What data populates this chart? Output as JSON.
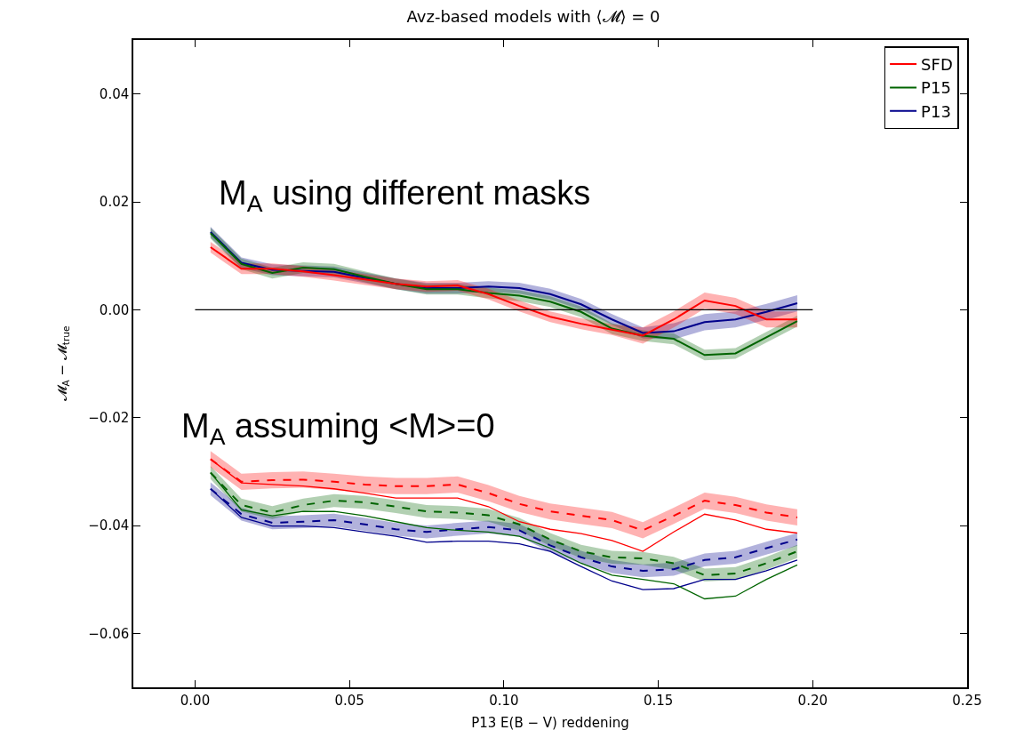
{
  "chart_data": {
    "type": "line",
    "title": "Avz-based models with ⟨𝓜⟩ = 0",
    "xlabel": "P13 E(B − V) reddening",
    "ylabel": "𝓜$_{A}$ − 𝓜$_{true}$",
    "annotations": [
      "M$_{A}$ using different masks",
      "M$_{A}$ assuming <M>=0"
    ],
    "x": [
      0.005,
      0.015,
      0.025,
      0.035,
      0.045,
      0.055,
      0.065,
      0.075,
      0.085,
      0.095,
      0.105,
      0.115,
      0.125,
      0.135,
      0.145,
      0.155,
      0.165,
      0.175,
      0.185,
      0.195
    ],
    "series": [
      {
        "name": "P13",
        "color": "#00008b",
        "values": [
          0.0144,
          0.0087,
          0.0074,
          0.0072,
          0.007,
          0.0059,
          0.0048,
          0.004,
          0.004,
          0.0043,
          0.004,
          0.0029,
          0.001,
          -0.0018,
          -0.0043,
          -0.004,
          -0.0023,
          -0.0018,
          -0.0004,
          0.0012
        ],
        "upper": [
          0.0154,
          0.0097,
          0.0084,
          0.0082,
          0.008,
          0.0069,
          0.0058,
          0.005,
          0.005,
          0.0053,
          0.005,
          0.0039,
          0.002,
          -0.0008,
          -0.0033,
          -0.0025,
          -0.0008,
          -0.0003,
          0.0011,
          0.0027
        ],
        "lower": [
          0.0134,
          0.0077,
          0.0064,
          0.0062,
          0.006,
          0.0049,
          0.0038,
          0.003,
          0.003,
          0.0033,
          0.003,
          0.0019,
          0.0,
          -0.0028,
          -0.0053,
          -0.0055,
          -0.0038,
          -0.0033,
          -0.0019,
          -0.0003
        ]
      },
      {
        "name": "P15",
        "color": "#006400",
        "values": [
          0.0142,
          0.0085,
          0.0068,
          0.0078,
          0.0075,
          0.0061,
          0.0048,
          0.0038,
          0.0038,
          0.0031,
          0.0026,
          0.0015,
          -0.0004,
          -0.0035,
          -0.0048,
          -0.0054,
          -0.0084,
          -0.0081,
          -0.0051,
          -0.0021
        ],
        "upper": [
          0.0152,
          0.0095,
          0.0078,
          0.0088,
          0.0085,
          0.0071,
          0.0058,
          0.0048,
          0.0048,
          0.0041,
          0.0036,
          0.0025,
          0.0006,
          -0.0025,
          -0.0038,
          -0.0044,
          -0.0074,
          -0.0071,
          -0.0041,
          -0.0011
        ],
        "lower": [
          0.0132,
          0.0075,
          0.0058,
          0.0068,
          0.0065,
          0.0051,
          0.0038,
          0.0028,
          0.0028,
          0.0021,
          0.0016,
          0.0005,
          -0.0014,
          -0.0045,
          -0.0058,
          -0.0064,
          -0.0094,
          -0.0091,
          -0.0061,
          -0.0031
        ]
      },
      {
        "name": "SFD",
        "color": "#ff0000",
        "values": [
          0.0116,
          0.0076,
          0.0076,
          0.0071,
          0.0064,
          0.0056,
          0.0048,
          0.0043,
          0.0045,
          0.0029,
          0.0007,
          -0.0013,
          -0.0026,
          -0.0037,
          -0.0048,
          -0.0018,
          0.0017,
          0.0007,
          -0.0018,
          -0.0018
        ],
        "upper": [
          0.0126,
          0.0086,
          0.0086,
          0.0081,
          0.0074,
          0.0066,
          0.0058,
          0.0053,
          0.0055,
          0.0039,
          0.0017,
          -0.0003,
          -0.0016,
          -0.0027,
          -0.0033,
          -0.0003,
          0.0032,
          0.0022,
          -0.0003,
          -0.0003
        ],
        "lower": [
          0.0106,
          0.0066,
          0.0066,
          0.0061,
          0.0054,
          0.0046,
          0.0038,
          0.0033,
          0.0035,
          0.0019,
          -0.0003,
          -0.0023,
          -0.0036,
          -0.0047,
          -0.0063,
          -0.0033,
          0.0002,
          -0.0008,
          -0.0033,
          -0.0033
        ]
      },
      {
        "color": "#00008b",
        "line_style": "dashed",
        "values": [
          -0.0332,
          -0.0379,
          -0.0395,
          -0.0393,
          -0.039,
          -0.0398,
          -0.0407,
          -0.0412,
          -0.0407,
          -0.0403,
          -0.0409,
          -0.0437,
          -0.0459,
          -0.0476,
          -0.0484,
          -0.0481,
          -0.0464,
          -0.0459,
          -0.0442,
          -0.0426
        ],
        "upper": [
          -0.032,
          -0.0367,
          -0.0383,
          -0.0381,
          -0.0378,
          -0.0386,
          -0.0395,
          -0.04,
          -0.0395,
          -0.0391,
          -0.0397,
          -0.0425,
          -0.0447,
          -0.0464,
          -0.0472,
          -0.0469,
          -0.0452,
          -0.0447,
          -0.043,
          -0.0414
        ],
        "lower": [
          -0.0344,
          -0.0391,
          -0.0407,
          -0.0405,
          -0.0402,
          -0.041,
          -0.0419,
          -0.0424,
          -0.0419,
          -0.0415,
          -0.0421,
          -0.0449,
          -0.0471,
          -0.0488,
          -0.0496,
          -0.0493,
          -0.0476,
          -0.0471,
          -0.0454,
          -0.0438
        ]
      },
      {
        "color": "#006400",
        "line_style": "dashed",
        "values": [
          -0.0302,
          -0.0362,
          -0.0376,
          -0.0362,
          -0.0354,
          -0.0357,
          -0.0365,
          -0.0374,
          -0.0376,
          -0.0381,
          -0.0398,
          -0.0426,
          -0.0448,
          -0.0459,
          -0.0461,
          -0.047,
          -0.0492,
          -0.0489,
          -0.047,
          -0.0448
        ],
        "upper": [
          -0.029,
          -0.035,
          -0.0364,
          -0.035,
          -0.0342,
          -0.0345,
          -0.0353,
          -0.0362,
          -0.0364,
          -0.0369,
          -0.0386,
          -0.0414,
          -0.0436,
          -0.0447,
          -0.0449,
          -0.0458,
          -0.048,
          -0.0477,
          -0.0458,
          -0.0436
        ],
        "lower": [
          -0.0314,
          -0.0374,
          -0.0388,
          -0.0374,
          -0.0366,
          -0.0369,
          -0.0377,
          -0.0386,
          -0.0388,
          -0.0393,
          -0.041,
          -0.0438,
          -0.046,
          -0.0471,
          -0.0473,
          -0.0482,
          -0.0504,
          -0.0501,
          -0.0482,
          -0.046
        ]
      },
      {
        "color": "#ff0000",
        "line_style": "dashed",
        "values": [
          -0.0277,
          -0.0319,
          -0.0316,
          -0.0315,
          -0.0319,
          -0.0324,
          -0.0327,
          -0.0327,
          -0.0324,
          -0.034,
          -0.036,
          -0.0374,
          -0.0382,
          -0.039,
          -0.0409,
          -0.0382,
          -0.0354,
          -0.0362,
          -0.0376,
          -0.0385
        ],
        "upper": [
          -0.0262,
          -0.0304,
          -0.0301,
          -0.03,
          -0.0304,
          -0.0309,
          -0.0312,
          -0.0312,
          -0.0309,
          -0.0325,
          -0.0345,
          -0.0359,
          -0.0367,
          -0.0375,
          -0.0394,
          -0.0367,
          -0.0339,
          -0.0347,
          -0.0361,
          -0.037
        ],
        "lower": [
          -0.0292,
          -0.0334,
          -0.0331,
          -0.033,
          -0.0334,
          -0.0339,
          -0.0342,
          -0.0342,
          -0.0339,
          -0.0355,
          -0.0375,
          -0.0389,
          -0.0397,
          -0.0405,
          -0.0424,
          -0.0397,
          -0.0369,
          -0.0377,
          -0.0391,
          -0.04
        ]
      },
      {
        "color": "#00008b",
        "values": [
          -0.0332,
          -0.0385,
          -0.0401,
          -0.0401,
          -0.0404,
          -0.0412,
          -0.042,
          -0.0431,
          -0.0429,
          -0.0429,
          -0.0434,
          -0.0448,
          -0.0476,
          -0.0503,
          -0.0519,
          -0.0517,
          -0.05,
          -0.05,
          -0.0484,
          -0.0464
        ]
      },
      {
        "color": "#006400",
        "values": [
          -0.0302,
          -0.0371,
          -0.0382,
          -0.0374,
          -0.0374,
          -0.0382,
          -0.0393,
          -0.0404,
          -0.0409,
          -0.0412,
          -0.042,
          -0.0442,
          -0.047,
          -0.0492,
          -0.05,
          -0.0508,
          -0.0536,
          -0.0531,
          -0.05,
          -0.0473
        ]
      },
      {
        "color": "#ff0000",
        "values": [
          -0.0277,
          -0.0321,
          -0.0324,
          -0.0327,
          -0.0332,
          -0.034,
          -0.0349,
          -0.0349,
          -0.0349,
          -0.0365,
          -0.0393,
          -0.0407,
          -0.0415,
          -0.0428,
          -0.0448,
          -0.0412,
          -0.0379,
          -0.039,
          -0.0407,
          -0.0414
        ]
      },
      {
        "color": "#000000",
        "x": [
          0,
          0.2
        ],
        "values": [
          0,
          0
        ]
      }
    ],
    "xlim": [
      -0.02,
      0.25
    ],
    "xticks": [
      {
        "value": 0,
        "label": "0.00"
      },
      {
        "value": 0.05,
        "label": "0.05"
      },
      {
        "value": 0.1,
        "label": "0.10"
      },
      {
        "value": 0.15,
        "label": "0.15"
      },
      {
        "value": 0.2,
        "label": "0.20"
      },
      {
        "value": 0.25,
        "label": "0.25"
      }
    ],
    "ylim": [
      -0.07,
      0.05
    ],
    "yticks": [
      {
        "value": -0.06,
        "label": "−0.06"
      },
      {
        "value": -0.04,
        "label": "−0.04"
      },
      {
        "value": -0.02,
        "label": "−0.02"
      },
      {
        "value": 0,
        "label": "0.00"
      },
      {
        "value": 0.02,
        "label": "0.02"
      },
      {
        "value": 0.04,
        "label": "0.04"
      }
    ],
    "grid": false,
    "legend": "top right",
    "marker": "none",
    "line_style": "solid"
  }
}
